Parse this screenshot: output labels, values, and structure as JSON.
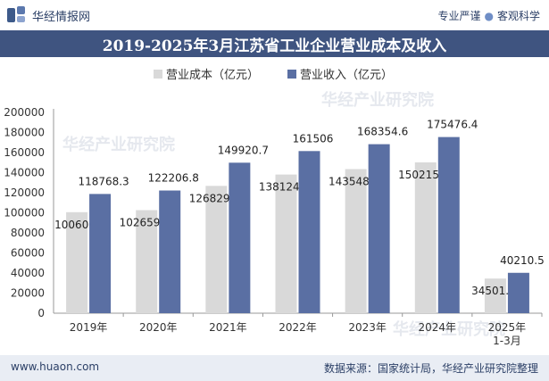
{
  "header": {
    "brand_name": "华经情报网",
    "tagline_left": "专业严谨",
    "tagline_right": "客观科学"
  },
  "footer": {
    "site": "www.huaon.com",
    "source": "数据来源：国家统计局，华经产业研究院整理"
  },
  "watermark": "华经产业研究院",
  "colors": {
    "title_bar": "#3f5480",
    "cost_bar": "#d9d9d9",
    "revenue_bar": "#5a6fa3"
  },
  "chart_data": {
    "type": "bar",
    "title": "2019-2025年3月江苏省工业企业营业成本及收入",
    "categories": [
      "2019年",
      "2020年",
      "2021年",
      "2022年",
      "2023年",
      "2024年",
      "2025年1-3月"
    ],
    "series": [
      {
        "name": "营业成本（亿元）",
        "values": [
          100600,
          102659.6,
          126829.6,
          138124.9,
          143548.6,
          150215.6,
          34501.7
        ]
      },
      {
        "name": "营业收入（亿元）",
        "values": [
          118768.3,
          122206.8,
          149920.7,
          161506,
          168354.6,
          175476.4,
          40210.5
        ]
      }
    ],
    "value_labels": [
      [
        "100600",
        "102659.6",
        "126829.6",
        "138124.9",
        "143548.6",
        "150215.6",
        "34501.7"
      ],
      [
        "118768.3",
        "122206.8",
        "149920.7",
        "161506",
        "168354.6",
        "175476.4",
        "40210.5"
      ]
    ],
    "ylim": [
      0,
      200000
    ],
    "yticks": [
      0,
      20000,
      40000,
      60000,
      80000,
      100000,
      120000,
      140000,
      160000,
      180000,
      200000
    ],
    "legend_position": "top-center",
    "grid": false
  }
}
